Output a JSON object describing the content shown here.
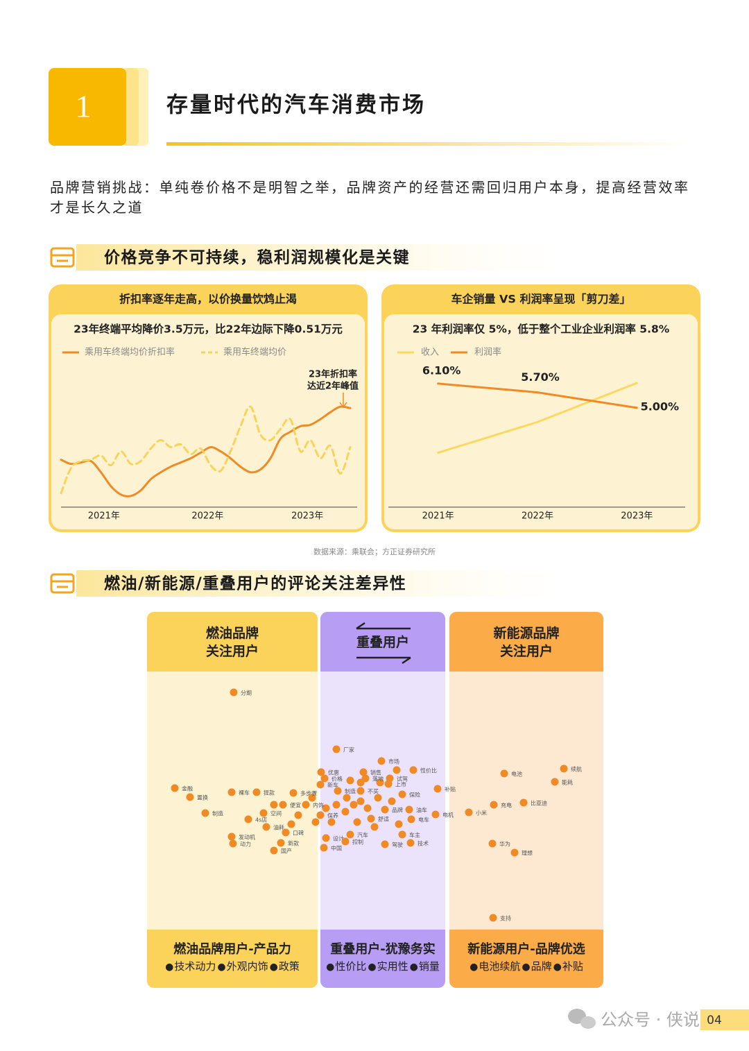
{
  "header": {
    "number": "1",
    "title": "存量时代的汽车消费市场"
  },
  "intro": "品牌营销挑战：单纯卷价格不是明智之举，品牌资产的经营还需回归用户本身，提高经营效率才是长久之道",
  "sections": [
    "价格竞争不可持续，稳利润规模化是关键",
    "燃油/新能源/重叠用户的评论关注差异性"
  ],
  "chart_data": [
    {
      "type": "line",
      "title": "折扣率逐年走高，以价换量饮鸩止渴",
      "subtitle": "23年终端平均降价3.5万元，比22年边际下降0.51万元",
      "x": [
        0,
        1,
        2,
        3,
        4,
        5,
        6,
        7,
        8,
        9,
        10,
        11,
        12,
        13,
        14,
        15,
        16,
        17,
        18,
        19,
        20,
        21,
        22,
        23,
        24,
        25,
        26,
        27,
        28,
        29
      ],
      "xlim": [
        0,
        29
      ],
      "xticks": [
        {
          "value": 4.3,
          "label": "2021年"
        },
        {
          "value": 14.7,
          "label": "2022年"
        },
        {
          "value": 24.7,
          "label": "2023年"
        }
      ],
      "ylim": [
        0,
        100
      ],
      "series": [
        {
          "name": "乘用车终端均价折扣率",
          "color": "#f08a24",
          "dashed": false,
          "values": [
            34,
            31,
            32,
            33,
            25,
            15,
            9,
            8,
            12,
            20,
            25,
            29,
            32,
            35,
            39,
            43,
            40,
            35,
            29,
            25,
            27,
            35,
            49,
            54,
            58,
            59,
            63,
            68,
            72,
            71
          ]
        },
        {
          "name": "乘用车终端均价",
          "color": "#f8d35a",
          "dashed": true,
          "values": [
            10,
            28,
            33,
            34,
            37,
            30,
            40,
            31,
            33,
            42,
            48,
            43,
            45,
            38,
            42,
            30,
            26,
            40,
            58,
            72,
            52,
            48,
            56,
            63,
            40,
            48,
            35,
            44,
            24,
            43
          ]
        }
      ],
      "annotations": [
        "23年折扣率",
        "达近2年峰值"
      ]
    },
    {
      "type": "line",
      "title": "车企销量 VS 利润率呈现「剪刀差」",
      "subtitle": "23 年利润率仅 5%，低于整个工业企业利润率 5.8%",
      "categories": [
        "2021年",
        "2022年",
        "2023年"
      ],
      "ylim": [
        0.5,
        6.82
      ],
      "y2lim": [
        0,
        100
      ],
      "series": [
        {
          "name": "收入",
          "color": "#fbd860",
          "axis": "y2",
          "values": [
            39,
            61,
            89
          ]
        },
        {
          "name": "利润率",
          "color": "#f08a24",
          "values": [
            6.1,
            5.7,
            5.0
          ],
          "value_labels": [
            "6.10%",
            "5.70%",
            "5.00%"
          ]
        }
      ]
    }
  ],
  "source": "数据来源：乘联会；方正证券研究所",
  "comparison": {
    "columns": [
      {
        "title": [
          "燃油品牌",
          "关注用户"
        ],
        "words": [
          "分期",
          "金融",
          "置换",
          "制造",
          "裸车",
          "提款",
          "多步骤",
          "便宜",
          "内饰",
          "空间",
          "4s店",
          "油耗",
          "发动机",
          "动力",
          "国产",
          "新款",
          "口碑"
        ],
        "summary": "燃油品牌用户-产品力",
        "tags": [
          "技术动力",
          "外观内饰",
          "政策"
        ]
      },
      {
        "title": [
          "重叠用户"
        ],
        "words": [
          "厂家",
          "市场",
          "优惠",
          "价格",
          "新车",
          "销售",
          "落地",
          "试驾",
          "上市",
          "性价比",
          "保险",
          "补贴",
          "不买",
          "制造",
          "油车",
          "电车",
          "品牌",
          "舒适",
          "保养",
          "汽车",
          "车主",
          "驾驶",
          "技术",
          "设计",
          "控制",
          "中国"
        ],
        "summary": "重叠用户-犹豫务实",
        "tags": [
          "性价比",
          "实用性",
          "销量"
        ]
      },
      {
        "title": [
          "新能源品牌",
          "关注用户"
        ],
        "words": [
          "电池",
          "续航",
          "能耗",
          "充电",
          "比亚迪",
          "小米",
          "电机",
          "华为",
          "理想",
          "支持"
        ],
        "summary": "新能源用户-品牌优选",
        "tags": [
          "电池续航",
          "品牌",
          "补贴"
        ]
      }
    ]
  },
  "footer": {
    "account": "公众号 · 侠说",
    "page": "04"
  }
}
